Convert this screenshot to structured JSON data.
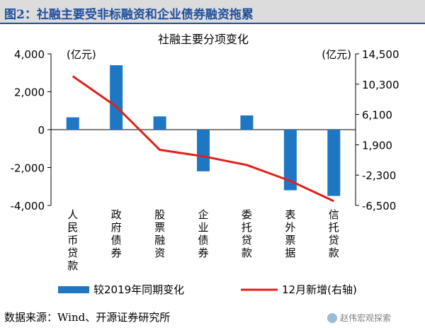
{
  "figure": {
    "heading": "图2：社融主要受非标融资和企业债券融资拖累",
    "source": "数据来源：Wind、开源证券研究所",
    "watermark": "赵伟宏观探索"
  },
  "chart_data": {
    "type": "bar",
    "title": "社融主要分项变化",
    "categories": [
      "人民币贷款",
      "政府债券",
      "股票融资",
      "企业债券",
      "委托贷款",
      "表外票据",
      "信托贷款"
    ],
    "left_axis": {
      "unit": "(亿元)",
      "ylim": [
        -4000,
        4000
      ],
      "ticks": [
        4000,
        2000,
        0,
        -2000,
        -4000
      ],
      "tick_labels": [
        "4,000",
        "2,000",
        "0",
        "-2,000",
        "-4,000"
      ]
    },
    "right_axis": {
      "unit": "(亿元)",
      "ylim": [
        -6500,
        14500
      ],
      "ticks": [
        14500,
        10300,
        6100,
        1900,
        -2300,
        -6500
      ],
      "tick_labels": [
        "14,500",
        "10,300",
        "6,100",
        "1,900",
        "-2,300",
        "-6,500"
      ]
    },
    "series": [
      {
        "name": "较2019年同期变化",
        "type": "bar",
        "axis": "left",
        "color": "#1f77c4",
        "values": [
          650,
          3400,
          700,
          -2200,
          750,
          -3200,
          -3500
        ]
      },
      {
        "name": "12月新增(右轴)",
        "type": "line",
        "axis": "right",
        "color": "#e0201b",
        "values": [
          11400,
          7200,
          1200,
          300,
          -900,
          -3100,
          -5900
        ]
      }
    ],
    "grid": false,
    "legend": "bottom"
  }
}
